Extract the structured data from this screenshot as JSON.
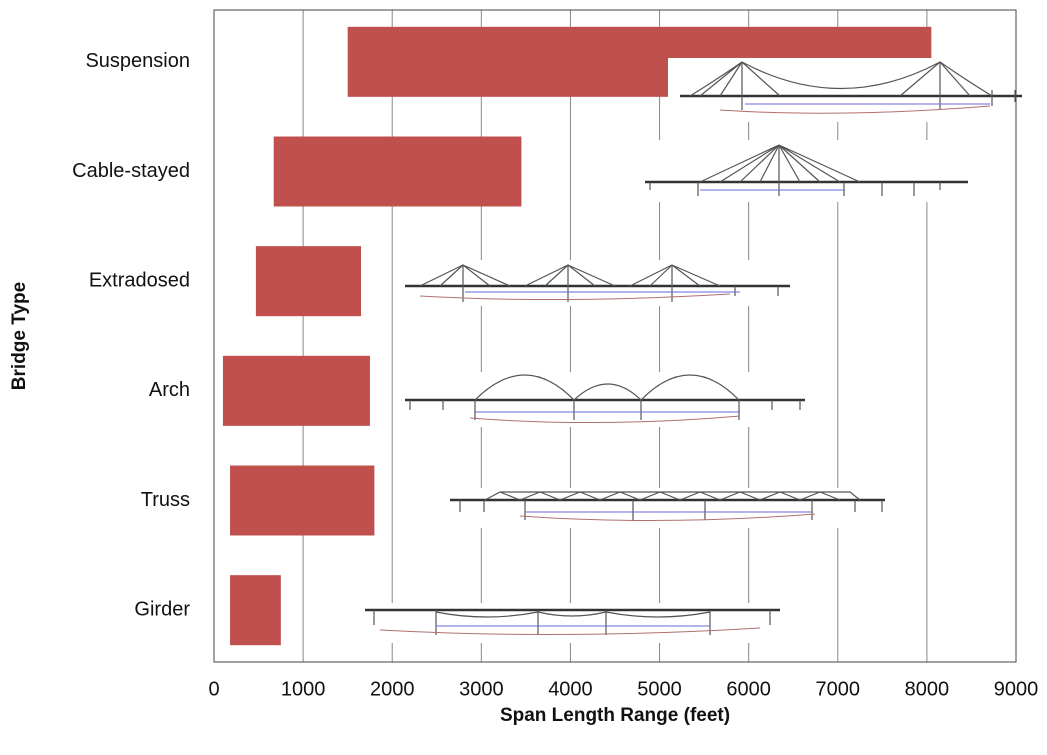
{
  "chart_data": {
    "type": "range-bar",
    "x_label": "Span Length Range (feet)",
    "y_label": "Bridge Type",
    "categories": [
      "Suspension",
      "Cable-stayed",
      "Extradosed",
      "Arch",
      "Truss",
      "Girder"
    ],
    "low": [
      1500,
      670,
      470,
      100,
      180,
      180
    ],
    "high": [
      8050,
      3450,
      1650,
      1750,
      1800,
      750
    ],
    "color": "#c0504d",
    "xlim": [
      0,
      9000
    ],
    "xticks": [
      0,
      1000,
      2000,
      3000,
      4000,
      5000,
      6000,
      7000,
      8000,
      9000
    ],
    "grid": true
  }
}
